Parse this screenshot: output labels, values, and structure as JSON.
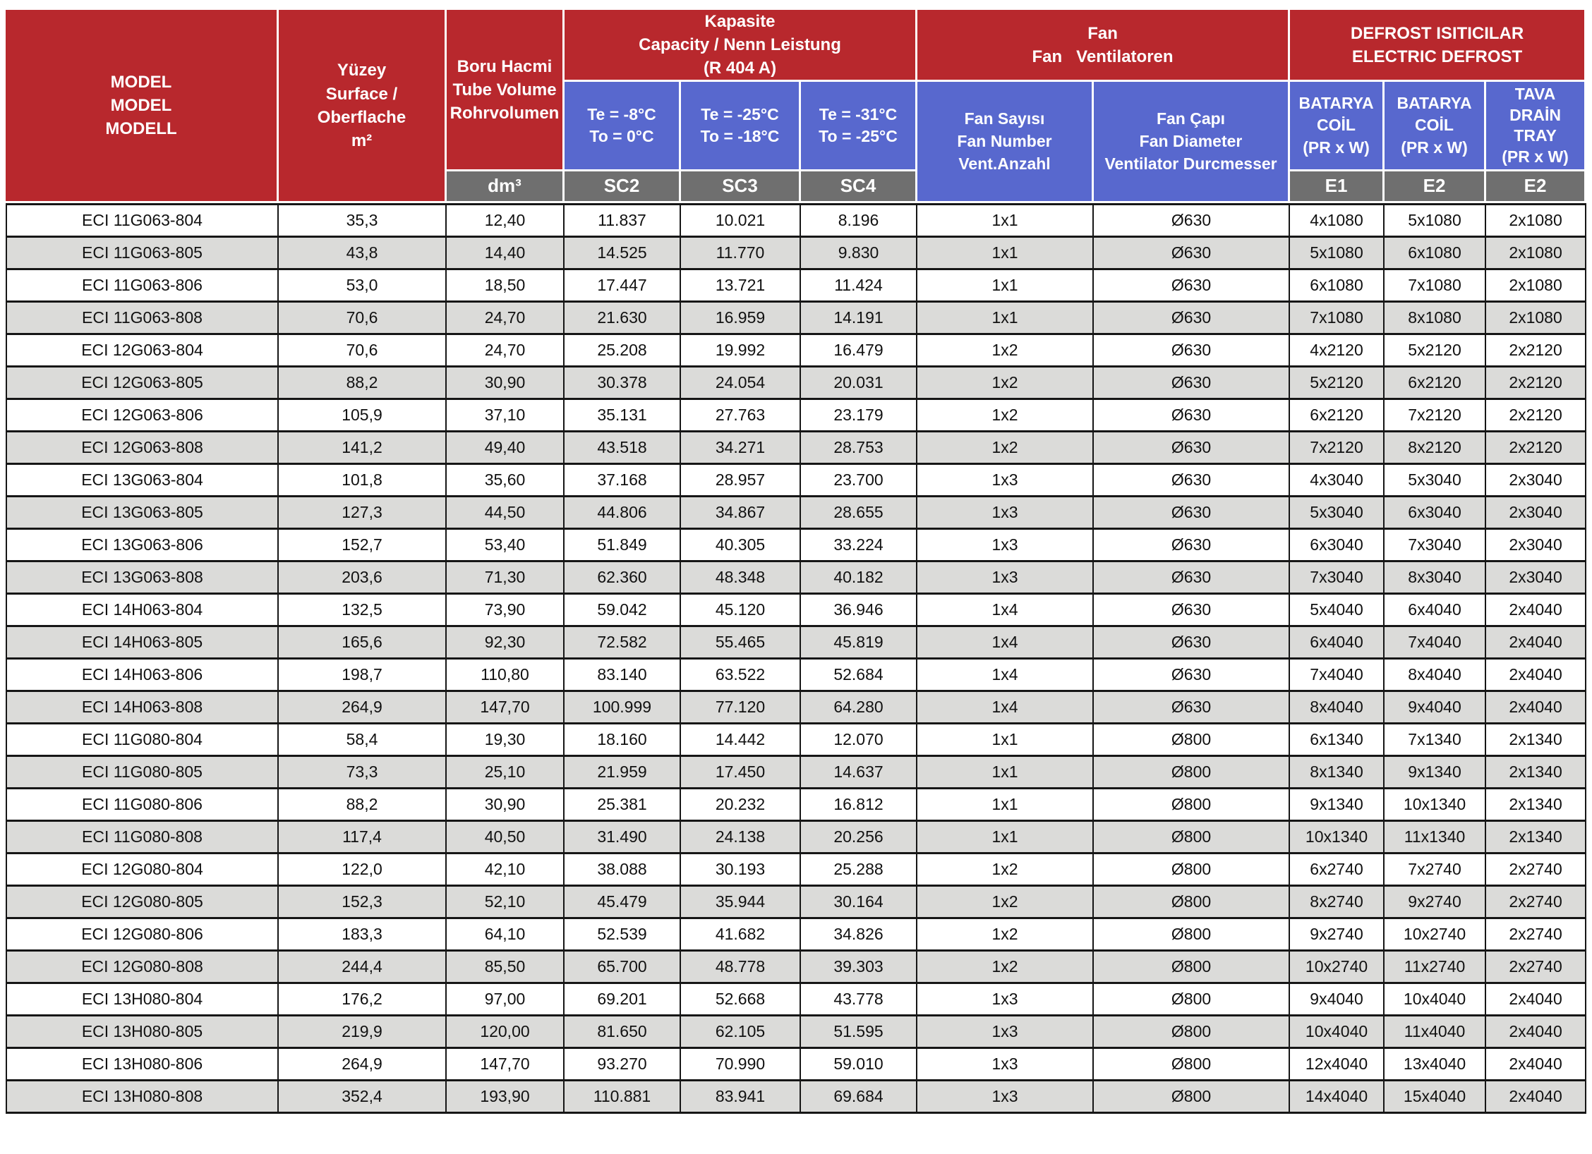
{
  "colors": {
    "header_red": "#B8282D",
    "header_blue": "#5868CE",
    "header_gray": "#6F6F6F",
    "row_alt": "#DBDBD9",
    "border_dark": "#161616",
    "text_dark": "#111111"
  },
  "table": {
    "header": {
      "model": "MODEL\nMODEL\nMODELL",
      "surface": "Yüzey\nSurface / Oberflache\nm²",
      "tube_volume": "Boru Hacmi\nTube Volume\nRohrvolumen",
      "capacity_group": "Kapasite\nCapacity / Nenn Leistung\n(R 404 A)",
      "fan_group": "Fan\nFan   Ventilatoren",
      "defrost_group": "DEFROST ISITICILAR\nELECTRIC DEFROST",
      "te_minus8": "Te = -8°C\nTo = 0°C",
      "te_minus25": "Te = -25°C\nTo = -18°C",
      "te_minus31": "Te = -31°C\nTo = -25°C",
      "fan_number": "Fan Sayısı\nFan Number\nVent.Anzahl",
      "fan_diameter": "Fan Çapı\nFan Diameter\nVentilator Durcmesser",
      "coil_e1": "BATARYA\nCOİL\n(PR x W)",
      "coil_e2": "BATARYA\nCOİL\n(PR x W)",
      "drain_tray": "TAVA\nDRAİN\nTRAY\n(PR x W)",
      "unit_dm3": "dm³",
      "sc2": "SC2",
      "sc3": "SC3",
      "sc4": "SC4",
      "e1": "E1",
      "e2": "E2",
      "e2_tray": "E2"
    },
    "column_keys": [
      "model",
      "surface-m2",
      "tube-volume-dm3",
      "capacity-sc2",
      "capacity-sc3",
      "capacity-sc4",
      "fan-number",
      "fan-diameter",
      "defrost-e1",
      "defrost-e2",
      "drain-tray-e2"
    ],
    "rows": [
      [
        "ECI 11G063-804",
        "35,3",
        "12,40",
        "11.837",
        "10.021",
        "8.196",
        "1x1",
        "Ø630",
        "4x1080",
        "5x1080",
        "2x1080"
      ],
      [
        "ECI 11G063-805",
        "43,8",
        "14,40",
        "14.525",
        "11.770",
        "9.830",
        "1x1",
        "Ø630",
        "5x1080",
        "6x1080",
        "2x1080"
      ],
      [
        "ECI 11G063-806",
        "53,0",
        "18,50",
        "17.447",
        "13.721",
        "11.424",
        "1x1",
        "Ø630",
        "6x1080",
        "7x1080",
        "2x1080"
      ],
      [
        "ECI 11G063-808",
        "70,6",
        "24,70",
        "21.630",
        "16.959",
        "14.191",
        "1x1",
        "Ø630",
        "7x1080",
        "8x1080",
        "2x1080"
      ],
      [
        "ECI 12G063-804",
        "70,6",
        "24,70",
        "25.208",
        "19.992",
        "16.479",
        "1x2",
        "Ø630",
        "4x2120",
        "5x2120",
        "2x2120"
      ],
      [
        "ECI 12G063-805",
        "88,2",
        "30,90",
        "30.378",
        "24.054",
        "20.031",
        "1x2",
        "Ø630",
        "5x2120",
        "6x2120",
        "2x2120"
      ],
      [
        "ECI 12G063-806",
        "105,9",
        "37,10",
        "35.131",
        "27.763",
        "23.179",
        "1x2",
        "Ø630",
        "6x2120",
        "7x2120",
        "2x2120"
      ],
      [
        "ECI 12G063-808",
        "141,2",
        "49,40",
        "43.518",
        "34.271",
        "28.753",
        "1x2",
        "Ø630",
        "7x2120",
        "8x2120",
        "2x2120"
      ],
      [
        "ECI 13G063-804",
        "101,8",
        "35,60",
        "37.168",
        "28.957",
        "23.700",
        "1x3",
        "Ø630",
        "4x3040",
        "5x3040",
        "2x3040"
      ],
      [
        "ECI 13G063-805",
        "127,3",
        "44,50",
        "44.806",
        "34.867",
        "28.655",
        "1x3",
        "Ø630",
        "5x3040",
        "6x3040",
        "2x3040"
      ],
      [
        "ECI 13G063-806",
        "152,7",
        "53,40",
        "51.849",
        "40.305",
        "33.224",
        "1x3",
        "Ø630",
        "6x3040",
        "7x3040",
        "2x3040"
      ],
      [
        "ECI 13G063-808",
        "203,6",
        "71,30",
        "62.360",
        "48.348",
        "40.182",
        "1x3",
        "Ø630",
        "7x3040",
        "8x3040",
        "2x3040"
      ],
      [
        "ECI 14H063-804",
        "132,5",
        "73,90",
        "59.042",
        "45.120",
        "36.946",
        "1x4",
        "Ø630",
        "5x4040",
        "6x4040",
        "2x4040"
      ],
      [
        "ECI 14H063-805",
        "165,6",
        "92,30",
        "72.582",
        "55.465",
        "45.819",
        "1x4",
        "Ø630",
        "6x4040",
        "7x4040",
        "2x4040"
      ],
      [
        "ECI 14H063-806",
        "198,7",
        "110,80",
        "83.140",
        "63.522",
        "52.684",
        "1x4",
        "Ø630",
        "7x4040",
        "8x4040",
        "2x4040"
      ],
      [
        "ECI 14H063-808",
        "264,9",
        "147,70",
        "100.999",
        "77.120",
        "64.280",
        "1x4",
        "Ø630",
        "8x4040",
        "9x4040",
        "2x4040"
      ],
      [
        "ECI 11G080-804",
        "58,4",
        "19,30",
        "18.160",
        "14.442",
        "12.070",
        "1x1",
        "Ø800",
        "6x1340",
        "7x1340",
        "2x1340"
      ],
      [
        "ECI 11G080-805",
        "73,3",
        "25,10",
        "21.959",
        "17.450",
        "14.637",
        "1x1",
        "Ø800",
        "8x1340",
        "9x1340",
        "2x1340"
      ],
      [
        "ECI 11G080-806",
        "88,2",
        "30,90",
        "25.381",
        "20.232",
        "16.812",
        "1x1",
        "Ø800",
        "9x1340",
        "10x1340",
        "2x1340"
      ],
      [
        "ECI 11G080-808",
        "117,4",
        "40,50",
        "31.490",
        "24.138",
        "20.256",
        "1x1",
        "Ø800",
        "10x1340",
        "11x1340",
        "2x1340"
      ],
      [
        "ECI 12G080-804",
        "122,0",
        "42,10",
        "38.088",
        "30.193",
        "25.288",
        "1x2",
        "Ø800",
        "6x2740",
        "7x2740",
        "2x2740"
      ],
      [
        "ECI 12G080-805",
        "152,3",
        "52,10",
        "45.479",
        "35.944",
        "30.164",
        "1x2",
        "Ø800",
        "8x2740",
        "9x2740",
        "2x2740"
      ],
      [
        "ECI 12G080-806",
        "183,3",
        "64,10",
        "52.539",
        "41.682",
        "34.826",
        "1x2",
        "Ø800",
        "9x2740",
        "10x2740",
        "2x2740"
      ],
      [
        "ECI 12G080-808",
        "244,4",
        "85,50",
        "65.700",
        "48.778",
        "39.303",
        "1x2",
        "Ø800",
        "10x2740",
        "11x2740",
        "2x2740"
      ],
      [
        "ECI 13H080-804",
        "176,2",
        "97,00",
        "69.201",
        "52.668",
        "43.778",
        "1x3",
        "Ø800",
        "9x4040",
        "10x4040",
        "2x4040"
      ],
      [
        "ECI 13H080-805",
        "219,9",
        "120,00",
        "81.650",
        "62.105",
        "51.595",
        "1x3",
        "Ø800",
        "10x4040",
        "11x4040",
        "2x4040"
      ],
      [
        "ECI 13H080-806",
        "264,9",
        "147,70",
        "93.270",
        "70.990",
        "59.010",
        "1x3",
        "Ø800",
        "12x4040",
        "13x4040",
        "2x4040"
      ],
      [
        "ECI 13H080-808",
        "352,4",
        "193,90",
        "110.881",
        "83.941",
        "69.684",
        "1x3",
        "Ø800",
        "14x4040",
        "15x4040",
        "2x4040"
      ]
    ]
  }
}
